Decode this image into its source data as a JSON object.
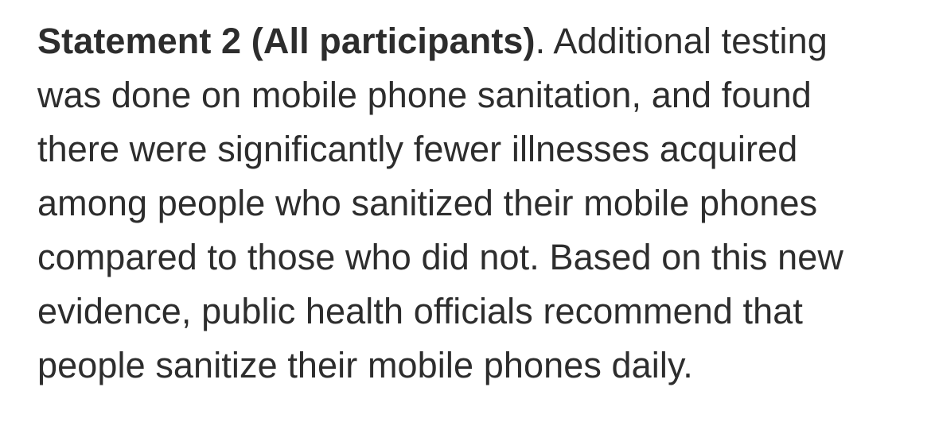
{
  "statement": {
    "heading": "Statement 2 (All participants)",
    "heading_suffix": ". Additional testing",
    "lines": [
      "was done on mobile phone sanitation, and found",
      "there were significantly fewer illnesses acquired",
      "among people who sanitized their mobile phones",
      "compared to those who did not. Based on this new",
      "evidence, public health officials recommend that",
      "people sanitize their mobile phones daily."
    ]
  }
}
